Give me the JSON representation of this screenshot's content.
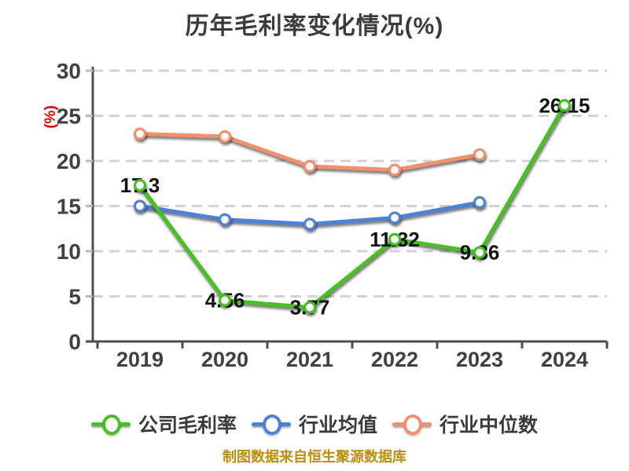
{
  "title": "历年毛利率变化情况(%)",
  "source_note": "制图数据来自恒生聚源数据库",
  "colors": {
    "title": "#3b3b3b",
    "axis": "#4d4d4d",
    "tick_label": "#404040",
    "gridline": "#d2d2d2",
    "y_axis_name": "#e60000",
    "point_label": "#121212",
    "footer": "#bd8d0b"
  },
  "chart_data": {
    "type": "line",
    "title": "历年毛利率变化情况(%)",
    "categories": [
      "2019",
      "2020",
      "2021",
      "2022",
      "2023",
      "2024"
    ],
    "xlabel": "",
    "ylabel": "(%)",
    "ylim": [
      0,
      30
    ],
    "yticks": [
      0,
      5,
      10,
      15,
      20,
      25,
      30
    ],
    "grid": "horizontal-dashed",
    "legend_position": "bottom",
    "marker_style": "white-filled-circle",
    "series": [
      {
        "name": "公司毛利率",
        "color": "#48bf23",
        "values": [
          17.3,
          4.56,
          3.77,
          11.32,
          9.86,
          26.15
        ],
        "point_labels": [
          "17.3",
          "4.56",
          "3.77",
          "11.32",
          "9.86",
          "26.15"
        ]
      },
      {
        "name": "行业均值",
        "color": "#4d82d8",
        "values": [
          15.0,
          13.5,
          13.0,
          13.7,
          15.4,
          null
        ],
        "point_labels": null
      },
      {
        "name": "行业中位数",
        "color": "#f4916c",
        "values": [
          23.0,
          22.7,
          19.4,
          19.0,
          20.7,
          null
        ],
        "point_labels": null
      }
    ]
  }
}
